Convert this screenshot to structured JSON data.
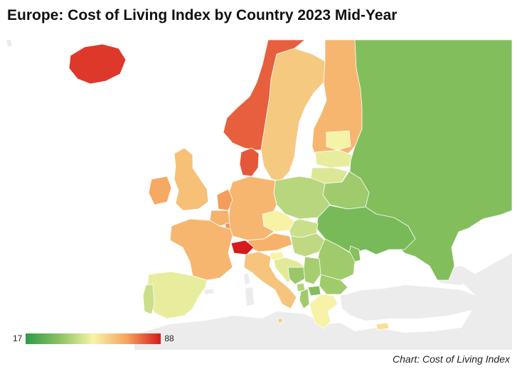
{
  "title": "Europe: Cost of Living Index by Country 2023 Mid-Year",
  "credit": "Chart: Cost of Living Index",
  "legend": {
    "min_label": "17",
    "max_label": "88",
    "colors": [
      "#2e9b49",
      "#8cc25f",
      "#f7f4a8",
      "#f6a35d",
      "#d7191c"
    ]
  },
  "colors": {
    "no_data": "#ececec",
    "border": "#ffffff",
    "lake": "#ffffff"
  },
  "countries": [
    {
      "name": "Iceland",
      "value": 84
    },
    {
      "name": "Norway",
      "value": 79
    },
    {
      "name": "Sweden",
      "value": 62
    },
    {
      "name": "Finland",
      "value": 66
    },
    {
      "name": "Russia",
      "value": 33
    },
    {
      "name": "Estonia",
      "value": 52
    },
    {
      "name": "Latvia",
      "value": 50
    },
    {
      "name": "Lithuania",
      "value": 48
    },
    {
      "name": "Belarus",
      "value": 38
    },
    {
      "name": "Ukraine",
      "value": 31
    },
    {
      "name": "Moldova",
      "value": 34
    },
    {
      "name": "Denmark",
      "value": 80
    },
    {
      "name": "Ireland",
      "value": 69
    },
    {
      "name": "United Kingdom",
      "value": 64
    },
    {
      "name": "Netherlands",
      "value": 71
    },
    {
      "name": "Belgium",
      "value": 67
    },
    {
      "name": "Luxembourg",
      "value": 72
    },
    {
      "name": "Germany",
      "value": 66
    },
    {
      "name": "Poland",
      "value": 42
    },
    {
      "name": "Czech Republic",
      "value": 53
    },
    {
      "name": "Slovakia",
      "value": 45
    },
    {
      "name": "Austria",
      "value": 67
    },
    {
      "name": "Hungary",
      "value": 43
    },
    {
      "name": "Romania",
      "value": 38
    },
    {
      "name": "France",
      "value": 66
    },
    {
      "name": "Switzerland",
      "value": 88
    },
    {
      "name": "Italy",
      "value": 63
    },
    {
      "name": "Slovenia",
      "value": 53
    },
    {
      "name": "Croatia",
      "value": 49
    },
    {
      "name": "Bosnia and Herzegovina",
      "value": 37
    },
    {
      "name": "Serbia",
      "value": 39
    },
    {
      "name": "Montenegro",
      "value": 41
    },
    {
      "name": "Albania",
      "value": 38
    },
    {
      "name": "North Macedonia",
      "value": 33
    },
    {
      "name": "Bulgaria",
      "value": 38
    },
    {
      "name": "Greece",
      "value": 53
    },
    {
      "name": "Spain",
      "value": 50
    },
    {
      "name": "Portugal",
      "value": 45
    },
    {
      "name": "Malta",
      "value": 61
    },
    {
      "name": "Cyprus",
      "value": 57
    }
  ]
}
